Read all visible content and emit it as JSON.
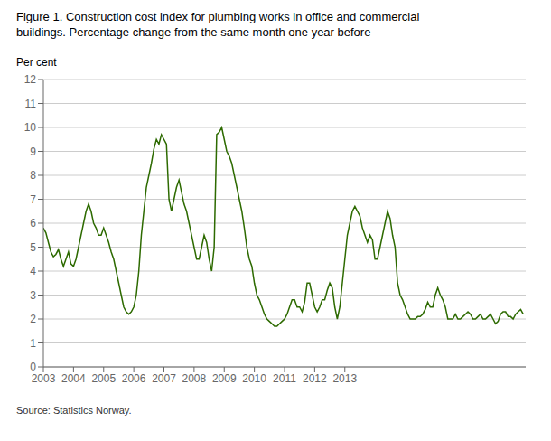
{
  "chart_data": {
    "type": "line",
    "title": "Figure 1. Construction cost index for plumbing works in office and commercial",
    "subtitle": "buildings. Percentage change from the same month one year before",
    "ylabel": "Per cent",
    "source": "Source: Statistics Norway.",
    "color": "#2d6a00",
    "grid": true,
    "xlim": [
      2003,
      2019
    ],
    "xticks": [
      2003,
      2004,
      2005,
      2006,
      2007,
      2008,
      2009,
      2010,
      2011,
      2012,
      2013
    ],
    "ylim": [
      0,
      12
    ],
    "yticks": [
      0,
      1,
      2,
      3,
      4,
      5,
      6,
      7,
      8,
      9,
      10,
      11,
      12
    ],
    "x": [
      2003,
      2003.0833333333333,
      2003.1666666666667,
      2003.25,
      2003.3333333333333,
      2003.4166666666667,
      2003.5,
      2003.5833333333333,
      2003.6666666666667,
      2003.75,
      2003.8333333333333,
      2003.9166666666667,
      2004,
      2004.0833333333333,
      2004.1666666666667,
      2004.25,
      2004.3333333333333,
      2004.4166666666667,
      2004.5,
      2004.5833333333333,
      2004.6666666666667,
      2004.75,
      2004.8333333333333,
      2004.9166666666667,
      2005,
      2005.0833333333333,
      2005.1666666666667,
      2005.25,
      2005.3333333333333,
      2005.4166666666667,
      2005.5,
      2005.5833333333333,
      2005.6666666666667,
      2005.75,
      2005.8333333333333,
      2005.9166666666667,
      2006,
      2006.0833333333333,
      2006.1666666666667,
      2006.25,
      2006.3333333333333,
      2006.4166666666667,
      2006.5,
      2006.5833333333333,
      2006.6666666666667,
      2006.75,
      2006.8333333333333,
      2006.9166666666667,
      2007,
      2007.0833333333333,
      2007.1666666666667,
      2007.25,
      2007.3333333333333,
      2007.4166666666667,
      2007.5,
      2007.5833333333333,
      2007.6666666666667,
      2007.75,
      2007.8333333333333,
      2007.9166666666667,
      2008,
      2008.0833333333333,
      2008.1666666666667,
      2008.25,
      2008.3333333333333,
      2008.4166666666667,
      2008.5,
      2008.5833333333333,
      2008.6666666666667,
      2008.75,
      2008.8333333333333,
      2008.9166666666667,
      2009,
      2009.0833333333333,
      2009.1666666666667,
      2009.25,
      2009.3333333333333,
      2009.4166666666667,
      2009.5,
      2009.5833333333333,
      2009.6666666666667,
      2009.75,
      2009.8333333333333,
      2009.9166666666667,
      2010,
      2010.0833333333333,
      2010.1666666666667,
      2010.25,
      2010.3333333333333,
      2010.4166666666667,
      2010.5,
      2010.5833333333333,
      2010.6666666666667,
      2010.75,
      2010.8333333333333,
      2010.9166666666667,
      2011,
      2011.0833333333333,
      2011.1666666666667,
      2011.25,
      2011.3333333333333,
      2011.4166666666667,
      2011.5,
      2011.5833333333333,
      2011.6666666666667,
      2011.75,
      2011.8333333333333,
      2011.9166666666667,
      2012,
      2012.0833333333333,
      2012.1666666666667,
      2012.25,
      2012.3333333333333,
      2012.4166666666667,
      2012.5,
      2012.5833333333333,
      2012.6666666666667,
      2012.75,
      2012.8333333333333,
      2012.9166666666667,
      2013,
      2013.0833333333333,
      2013.1666666666667,
      2013.25,
      2013.3333333333333,
      2013.4166666666667,
      2013.5,
      2013.5833333333333,
      2013.6666666666667,
      2013.75,
      2013.8333333333333,
      2013.9166666666667,
      2014,
      2014.0833333333333,
      2014.1666666666667,
      2014.25,
      2014.3333333333333,
      2014.4166666666667,
      2014.5,
      2014.5833333333333,
      2014.6666666666667,
      2014.75,
      2014.8333333333333,
      2014.9166666666667,
      2015,
      2015.0833333333333,
      2015.1666666666667,
      2015.25,
      2015.3333333333333,
      2015.4166666666667,
      2015.5,
      2015.5833333333333,
      2015.6666666666667,
      2015.75,
      2015.8333333333333,
      2015.9166666666667,
      2016,
      2016.0833333333333,
      2016.1666666666667,
      2016.25,
      2016.3333333333333,
      2016.4166666666667,
      2016.5,
      2016.5833333333333,
      2016.6666666666667,
      2016.75,
      2016.8333333333333,
      2016.9166666666667,
      2017,
      2017.0833333333333,
      2017.1666666666667,
      2017.25,
      2017.3333333333333,
      2017.4166666666667,
      2017.5,
      2017.5833333333333,
      2017.6666666666667,
      2017.75,
      2017.8333333333333,
      2017.9166666666667,
      2018,
      2018.0833333333333,
      2018.1666666666667,
      2018.25,
      2018.3333333333333,
      2018.4166666666667,
      2018.5,
      2018.5833333333333,
      2018.6666666666667,
      2018.75,
      2018.8333333333333,
      2018.9166666666667
    ],
    "values": [
      5.8,
      5.6,
      5.2,
      4.8,
      4.6,
      4.7,
      4.9,
      4.5,
      4.2,
      4.5,
      4.8,
      4.3,
      4.2,
      4.5,
      5.0,
      5.5,
      6.0,
      6.5,
      6.8,
      6.5,
      6.0,
      5.8,
      5.5,
      5.5,
      5.8,
      5.5,
      5.2,
      4.8,
      4.5,
      4.0,
      3.5,
      3.0,
      2.5,
      2.3,
      2.2,
      2.3,
      2.5,
      3.0,
      4.0,
      5.5,
      6.5,
      7.5,
      8.0,
      8.5,
      9.1,
      9.5,
      9.3,
      9.7,
      9.5,
      9.3,
      7.0,
      6.5,
      7.0,
      7.5,
      7.8,
      7.3,
      6.8,
      6.5,
      6.0,
      5.5,
      5.0,
      4.5,
      4.5,
      5.0,
      5.5,
      5.2,
      4.5,
      4.0,
      5.0,
      9.7,
      9.8,
      10.0,
      9.5,
      9.0,
      8.8,
      8.5,
      8.0,
      7.5,
      7.0,
      6.5,
      5.8,
      5.0,
      4.5,
      4.2,
      3.5,
      3.0,
      2.8,
      2.5,
      2.2,
      2.0,
      1.9,
      1.8,
      1.7,
      1.7,
      1.8,
      1.9,
      2.0,
      2.2,
      2.5,
      2.8,
      2.8,
      2.5,
      2.5,
      2.3,
      2.7,
      3.5,
      3.5,
      3.0,
      2.5,
      2.3,
      2.5,
      2.8,
      2.8,
      3.2,
      3.5,
      3.3,
      2.5,
      2.0,
      2.5,
      3.5,
      4.5,
      5.5,
      6.0,
      6.5,
      6.7,
      6.5,
      6.3,
      5.8,
      5.5,
      5.2,
      5.5,
      5.3,
      4.5,
      4.5,
      5.0,
      5.5,
      6.0,
      6.5,
      6.2,
      5.5,
      5.0,
      3.5,
      3.0,
      2.8,
      2.5,
      2.2,
      2.0,
      2.0,
      2.0,
      2.1,
      2.1,
      2.2,
      2.4,
      2.7,
      2.5,
      2.5,
      3.0,
      3.3,
      3.0,
      2.8,
      2.5,
      2.0,
      2.0,
      2.0,
      2.2,
      2.0,
      2.0,
      2.1,
      2.2,
      2.3,
      2.2,
      2.0,
      2.0,
      2.1,
      2.2,
      2.0,
      2.0,
      2.1,
      2.2,
      2.0,
      1.8,
      1.9,
      2.2,
      2.3,
      2.3,
      2.1,
      2.1,
      2.0,
      2.2,
      2.3,
      2.4,
      2.2
    ]
  }
}
